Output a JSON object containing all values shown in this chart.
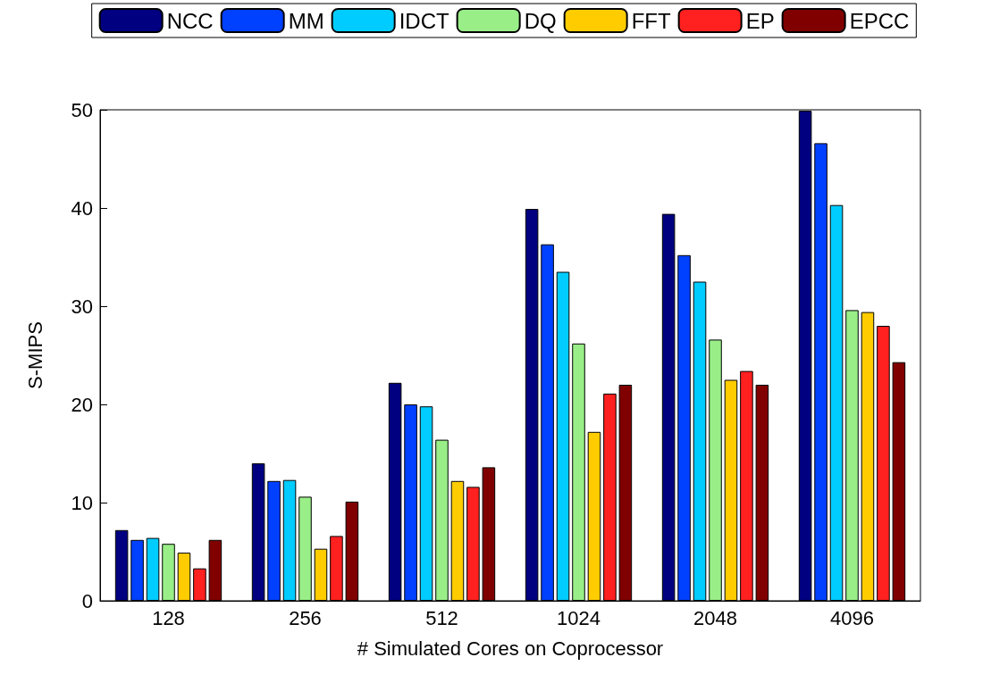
{
  "chart_data": {
    "type": "bar",
    "xlabel": "# Simulated Cores on Coprocessor",
    "ylabel": "S-MIPS",
    "categories": [
      "128",
      "256",
      "512",
      "1024",
      "2048",
      "4096"
    ],
    "series": [
      {
        "name": "NCC",
        "color": "#000080",
        "values": [
          7.2,
          14.0,
          22.2,
          39.9,
          39.4,
          49.9
        ]
      },
      {
        "name": "MM",
        "color": "#0040ff",
        "values": [
          6.2,
          12.2,
          20.0,
          36.3,
          35.2,
          46.6
        ]
      },
      {
        "name": "IDCT",
        "color": "#00ccff",
        "values": [
          6.4,
          12.3,
          19.8,
          33.5,
          32.5,
          40.3
        ]
      },
      {
        "name": "DQ",
        "color": "#99ee88",
        "values": [
          5.8,
          10.6,
          16.4,
          26.2,
          26.6,
          29.6
        ]
      },
      {
        "name": "FFT",
        "color": "#ffcc00",
        "values": [
          4.9,
          5.3,
          12.2,
          17.2,
          22.5,
          29.4
        ]
      },
      {
        "name": "EP",
        "color": "#ff2020",
        "values": [
          3.3,
          6.6,
          11.6,
          21.1,
          23.4,
          28.0
        ]
      },
      {
        "name": "EPCC",
        "color": "#800000",
        "values": [
          6.2,
          10.1,
          13.6,
          22.0,
          22.0,
          24.3
        ]
      }
    ],
    "ylim": [
      0,
      50
    ],
    "yticks": [
      0,
      10,
      20,
      30,
      40,
      50
    ],
    "grid": false,
    "legend": "top"
  }
}
